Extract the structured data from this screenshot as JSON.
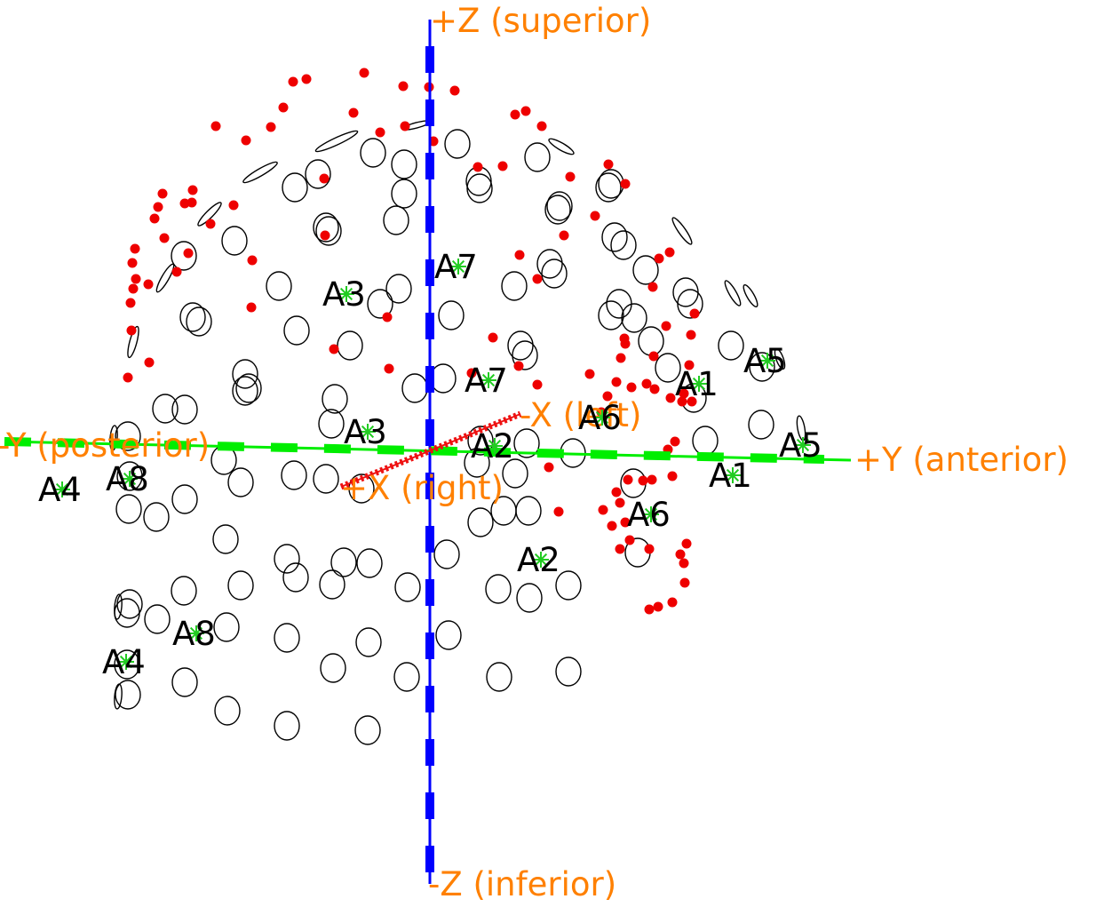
{
  "colors": {
    "background": "#ffffff",
    "axis_label": "#ff8000",
    "z_axis": "#0000ff",
    "y_axis": "#00ee00",
    "x_axis": "#ee1111",
    "marker_star": "#22cc22",
    "marker_label": "#000000",
    "electrode_dot": "#ee0000",
    "coil_outline": "#000000"
  },
  "axes": {
    "z_pos_label": "+Z (superior)",
    "z_neg_label": "-Z (inferior)",
    "y_pos_label": "+Y (anterior)",
    "y_neg_label": "-Y (posterior)",
    "x_pos_label": "+X (right)",
    "x_neg_label": "-X (left)"
  },
  "markers": [
    "A1",
    "A1",
    "A2",
    "A2",
    "A3",
    "A3",
    "A4",
    "A4",
    "A5",
    "A5",
    "A6",
    "A6",
    "A7",
    "A7",
    "A8",
    "A8"
  ],
  "icons": {
    "marker": "asterisk-star-icon",
    "electrode": "red-dot-icon",
    "coil": "ellipse-outline-icon"
  }
}
